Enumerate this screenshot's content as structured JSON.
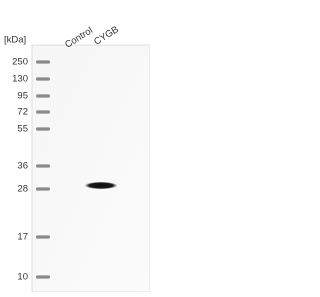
{
  "unit_label": "[kDa]",
  "lanes": [
    "Control",
    "CYGB"
  ],
  "markers": [
    "250",
    "130",
    "95",
    "72",
    "55",
    "36",
    "28",
    "17",
    "10"
  ]
}
